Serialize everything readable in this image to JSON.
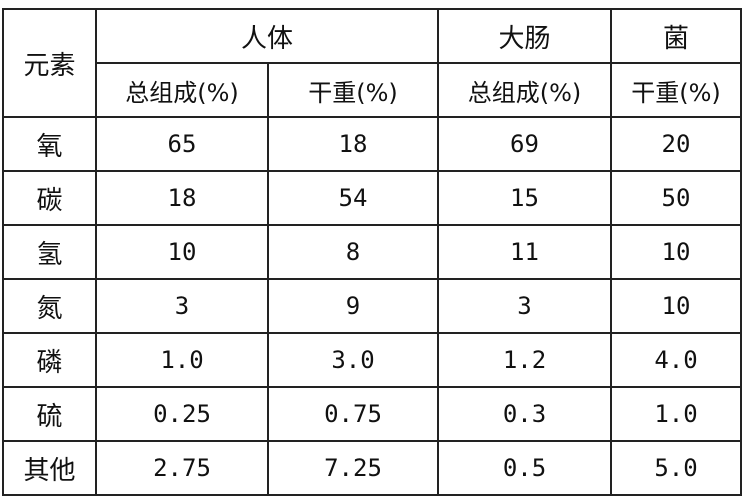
{
  "header": {
    "element": "元素",
    "group_human": "人体",
    "group_colon": "大肠",
    "group_bacteria": "菌",
    "sub": [
      "总组成(%)",
      "干重(%)",
      "总组成(%)",
      "干重(%)"
    ]
  },
  "rows": [
    [
      "氧",
      "65",
      "18",
      "69",
      "20"
    ],
    [
      "碳",
      "18",
      "54",
      "15",
      "50"
    ],
    [
      "氢",
      "10",
      "8",
      "11",
      "10"
    ],
    [
      "氮",
      "3",
      "9",
      "3",
      "10"
    ],
    [
      "磷",
      "1.0",
      "3.0",
      "1.2",
      "4.0"
    ],
    [
      "硫",
      "0.25",
      "0.75",
      "0.3",
      "1.0"
    ],
    [
      "其他",
      "2.75",
      "7.25",
      "0.5",
      "5.0"
    ]
  ]
}
